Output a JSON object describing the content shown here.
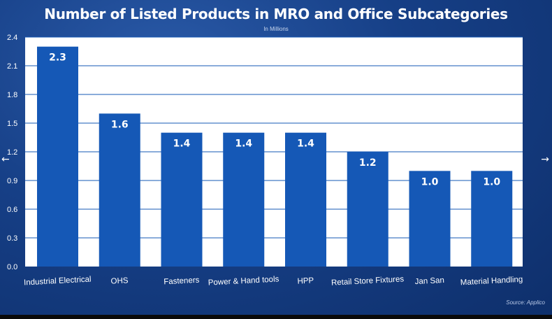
{
  "chart_data": {
    "type": "bar",
    "title": "Number of Listed Products in MRO and Office Subcategories",
    "subtitle": "In Millions",
    "categories": [
      "Industrial Electrical",
      "OHS",
      "Fasteners",
      "Power & Hand tools",
      "HPP",
      "Retail Store Fixtures",
      "Jan San",
      "Material Handling"
    ],
    "values": [
      2.3,
      1.6,
      1.4,
      1.4,
      1.4,
      1.2,
      1.0,
      1.0
    ],
    "data_labels": [
      "2.3",
      "1.6",
      "1.4",
      "1.4",
      "1.4",
      "1.2",
      "1.0",
      "1.0"
    ],
    "yticks": [
      "0.0",
      "0.3",
      "0.6",
      "0.9",
      "1.2",
      "1.5",
      "1.8",
      "2.1",
      "2.4"
    ],
    "ylim": [
      0,
      2.4
    ],
    "xlabel": "",
    "ylabel": "",
    "grid": true,
    "legend": "none",
    "colors": {
      "bar": "#1558b6",
      "plot_bg": "#ffffff",
      "grid": "#1558b6",
      "label_text": "#ffffff"
    }
  },
  "source": "Source: Applico",
  "nav": {
    "prev_icon": "←",
    "next_icon": "→"
  }
}
